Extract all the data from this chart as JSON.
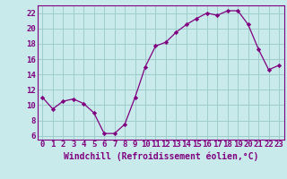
{
  "x": [
    0,
    1,
    2,
    3,
    4,
    5,
    6,
    7,
    8,
    9,
    10,
    11,
    12,
    13,
    14,
    15,
    16,
    17,
    18,
    19,
    20,
    21,
    22,
    23
  ],
  "y": [
    11,
    9.5,
    10.5,
    10.8,
    10.2,
    9,
    6.3,
    6.3,
    7.5,
    11,
    15,
    17.7,
    18.2,
    19.5,
    20.5,
    21.3,
    22,
    21.7,
    22.3,
    22.3,
    20.5,
    17.3,
    14.6,
    15.2
  ],
  "line_color": "#800080",
  "marker_color": "#800080",
  "bg_color": "#c8eaea",
  "grid_color": "#a0cccc",
  "axis_color": "#800080",
  "xlabel": "Windchill (Refroidissement éolien,°C)",
  "ylim": [
    5.5,
    23
  ],
  "xlim": [
    -0.5,
    23.5
  ],
  "yticks": [
    6,
    8,
    10,
    12,
    14,
    16,
    18,
    20,
    22
  ],
  "xticks": [
    0,
    1,
    2,
    3,
    4,
    5,
    6,
    7,
    8,
    9,
    10,
    11,
    12,
    13,
    14,
    15,
    16,
    17,
    18,
    19,
    20,
    21,
    22,
    23
  ],
  "font_color": "#800080",
  "tick_font_size": 6.5,
  "label_font_size": 7.0
}
